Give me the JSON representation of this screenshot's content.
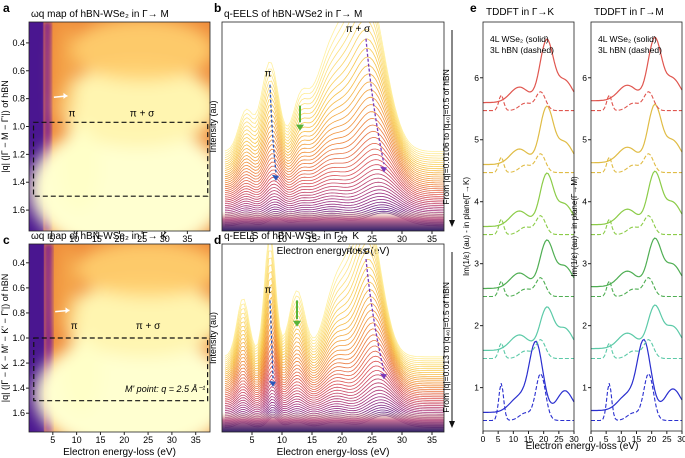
{
  "chart_data": [
    {
      "panel": "a",
      "type": "heatmap",
      "title": "ωq map of hBN-WSe₂ in Γ→ M",
      "xlabel": "Electron energy-loss (eV)",
      "ylabel": "|q| (|Γ − M − Γ'|) of hBN",
      "xlim": [
        0,
        40
      ],
      "ylim": [
        0.25,
        1.75
      ],
      "xticks": [
        5,
        10,
        15,
        20,
        25,
        30,
        35
      ],
      "yticks": [
        0.4,
        0.6,
        0.8,
        1.0,
        1.2,
        1.4,
        1.6
      ],
      "annotations": [
        "π",
        "π + σ"
      ],
      "dashed_box": {
        "x": [
          1,
          39.5
        ],
        "y": [
          0.97,
          1.5
        ]
      }
    },
    {
      "panel": "b",
      "type": "line",
      "title": "q-EELS of hBN-WSe2 in Γ→ M",
      "xlabel": "Electron energy-loss (eV)",
      "ylabel": "Intensity (au)",
      "xlim": [
        0,
        37
      ],
      "xticks": [
        5,
        10,
        15,
        20,
        25,
        30,
        35
      ],
      "annotations": [
        "π",
        "π + σ"
      ],
      "side_label": "From |q|=0.0106 to |q₄₀|=0.5 of hBN",
      "peak_shift": {
        "pi": [
          8,
          9
        ],
        "pi_sigma": [
          24,
          27
        ]
      }
    },
    {
      "panel": "c",
      "type": "heatmap",
      "title": "ωq map of hBN-WSe₂ in Γ→ K",
      "xlabel": "Electron energy-loss (eV)",
      "ylabel": "|q| (|Γ − K − M' − K' − Γ'|) of hBN",
      "xlim": [
        0,
        38
      ],
      "ylim": [
        0.25,
        1.75
      ],
      "xticks": [
        5,
        10,
        15,
        20,
        25,
        30,
        35
      ],
      "yticks": [
        0.4,
        0.6,
        0.8,
        1.0,
        1.2,
        1.4,
        1.6
      ],
      "annotations": [
        "π",
        "π + σ",
        "M' point: q = 2.5 Å⁻¹"
      ],
      "dashed_box": {
        "x": [
          1,
          37.5
        ],
        "y": [
          1.0,
          1.5
        ]
      }
    },
    {
      "panel": "d",
      "type": "line",
      "title": "q-EELS of hBN-WSe₂ in Γ→ K",
      "xlabel": "Electron energy-loss (eV)",
      "ylabel": "Intensity (au)",
      "xlim": [
        0,
        37
      ],
      "xticks": [
        5,
        10,
        15,
        20,
        25,
        30,
        35
      ],
      "annotations": [
        "π",
        "π + σ"
      ],
      "side_label": "From |q|=0.013 to |q₄₀|=0.5 of hBN",
      "peak_shift": {
        "pi": [
          8,
          8.5
        ],
        "pi_sigma": [
          24,
          27
        ]
      }
    },
    {
      "panel": "e",
      "type": "line",
      "titles": [
        "TDDFT in Γ→K",
        "TDDFT in Γ→M"
      ],
      "xlabel": "Electron energy-loss (eV)",
      "ylabels": [
        "Im(1/ε) (au) - in plane(Γ→K)",
        "Im(1/ε) (au) - in plane(Γ→M)"
      ],
      "legend": [
        "4L WSe₂ (solid)",
        "3L hBN (dashed)"
      ],
      "xlim": [
        0,
        30
      ],
      "ylim": [
        0.3,
        6.9
      ],
      "xticks": [
        0,
        5,
        10,
        15,
        20,
        25,
        30
      ],
      "yticks": [
        1,
        2,
        3,
        4,
        5,
        6
      ],
      "series": [
        {
          "offset": 0,
          "color": "#2a2fcf"
        },
        {
          "offset": 1,
          "color": "#5ccaa8"
        },
        {
          "offset": 2,
          "color": "#4fae53"
        },
        {
          "offset": 3,
          "color": "#8ccc48"
        },
        {
          "offset": 4,
          "color": "#e0bc45"
        },
        {
          "offset": 5,
          "color": "#e0564f"
        }
      ]
    }
  ],
  "panel_letters": [
    "a",
    "b",
    "c",
    "d",
    "e"
  ]
}
